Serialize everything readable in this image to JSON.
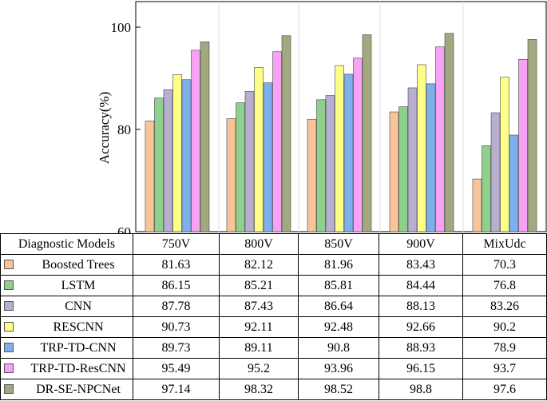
{
  "chart_data": {
    "type": "bar",
    "ylabel": "Accuracy(%)",
    "ylim": [
      60,
      105
    ],
    "yticks": [
      60,
      80,
      100
    ],
    "grid": false,
    "legend": "table-below",
    "categories": [
      "750V",
      "800V",
      "850V",
      "900V",
      "MixUdc"
    ],
    "series": [
      {
        "name": "Boosted Trees",
        "color": "#f8c499",
        "values": [
          81.63,
          82.12,
          81.96,
          83.43,
          70.3
        ]
      },
      {
        "name": "LSTM",
        "color": "#8ed08c",
        "values": [
          86.15,
          85.21,
          85.81,
          84.44,
          76.8
        ]
      },
      {
        "name": "CNN",
        "color": "#b7aed0",
        "values": [
          87.78,
          87.43,
          86.64,
          88.13,
          83.26
        ]
      },
      {
        "name": "RESCNN",
        "color": "#ffff88",
        "values": [
          90.73,
          92.11,
          92.48,
          92.66,
          90.2
        ]
      },
      {
        "name": "TRP-TD-CNN",
        "color": "#7fb0ee",
        "values": [
          89.73,
          89.11,
          90.8,
          88.93,
          78.9
        ]
      },
      {
        "name": "TRP-TD-ResCNN",
        "color": "#f7a2f4",
        "values": [
          95.49,
          95.2,
          93.96,
          96.15,
          93.7
        ]
      },
      {
        "name": "DR-SE-NPCNet",
        "color": "#a3a97f",
        "values": [
          97.14,
          98.32,
          98.52,
          98.8,
          97.6
        ]
      }
    ],
    "table": {
      "header": "Diagnostic Models",
      "rows": [
        [
          "81.63",
          "82.12",
          "81.96",
          "83.43",
          "70.3"
        ],
        [
          "86.15",
          "85.21",
          "85.81",
          "84.44",
          "76.8"
        ],
        [
          "87.78",
          "87.43",
          "86.64",
          "88.13",
          "83.26"
        ],
        [
          "90.73",
          "92.11",
          "92.48",
          "92.66",
          "90.2"
        ],
        [
          "89.73",
          "89.11",
          "90.8",
          "88.93",
          "78.9"
        ],
        [
          "95.49",
          "95.2",
          "93.96",
          "96.15",
          "93.7"
        ],
        [
          "97.14",
          "98.32",
          "98.52",
          "98.8",
          "97.6"
        ]
      ]
    }
  }
}
